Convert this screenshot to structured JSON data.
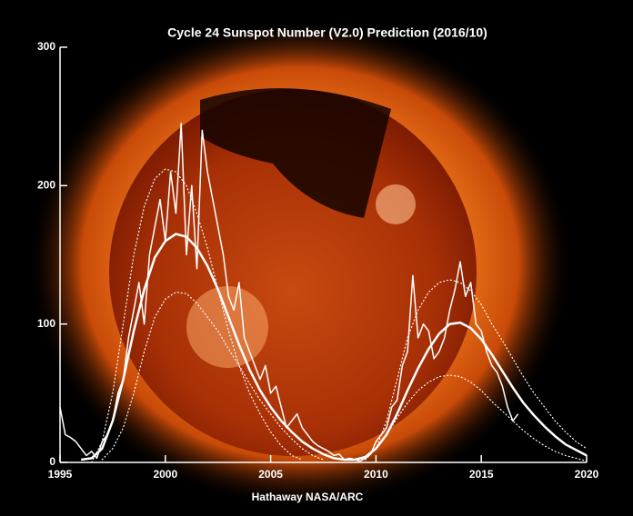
{
  "chart_data": {
    "type": "line",
    "title": "Cycle 24 Sunspot Number (V2.0) Prediction (2016/10)",
    "footer": "Hathaway  NASA/ARC",
    "xlim": [
      1995,
      2020
    ],
    "ylim": [
      0,
      300
    ],
    "xticks": [
      1995,
      2000,
      2005,
      2010,
      2015,
      2020
    ],
    "yticks": [
      0,
      100,
      200,
      300
    ],
    "series": [
      {
        "color": "#ffffff",
        "style": "solid",
        "width": 1.5,
        "x": [
          1995,
          1995.25,
          1995.5,
          1995.75,
          1996,
          1996.25,
          1996.5,
          1996.75,
          1997,
          1997.25,
          1997.5,
          1997.75,
          1998,
          1998.25,
          1998.5,
          1998.75,
          1999,
          1999.25,
          1999.5,
          1999.75,
          2000,
          2000.25,
          2000.5,
          2000.75,
          2001,
          2001.25,
          2001.5,
          2001.75,
          2002,
          2002.25,
          2002.5,
          2002.75,
          2003,
          2003.25,
          2003.5,
          2003.75,
          2004,
          2004.25,
          2004.5,
          2004.75,
          2005,
          2005.25,
          2005.5,
          2005.75,
          2006,
          2006.25,
          2006.5,
          2006.75,
          2007,
          2007.25,
          2007.5,
          2007.75,
          2008,
          2008.25,
          2008.5,
          2008.75,
          2009,
          2009.25,
          2009.5,
          2009.75,
          2010,
          2010.25,
          2010.5,
          2010.75,
          2011,
          2011.25,
          2011.5,
          2011.75,
          2012,
          2012.25,
          2012.5,
          2012.75,
          2013,
          2013.25,
          2013.5,
          2013.75,
          2014,
          2014.25,
          2014.5,
          2014.75,
          2015,
          2015.25,
          2015.5,
          2015.75,
          2016,
          2016.25,
          2016.5,
          2016.75
        ],
        "values": [
          40,
          20,
          18,
          15,
          10,
          5,
          8,
          3,
          15,
          20,
          30,
          50,
          60,
          90,
          110,
          130,
          100,
          150,
          170,
          190,
          160,
          210,
          180,
          245,
          150,
          200,
          140,
          240,
          210,
          190,
          170,
          150,
          120,
          110,
          130,
          90,
          80,
          70,
          60,
          70,
          50,
          55,
          40,
          25,
          30,
          35,
          25,
          20,
          15,
          12,
          10,
          8,
          5,
          6,
          2,
          3,
          2,
          1,
          3,
          6,
          15,
          20,
          25,
          40,
          45,
          70,
          80,
          135,
          90,
          100,
          95,
          75,
          80,
          90,
          110,
          125,
          145,
          120,
          130,
          100,
          95,
          80,
          70,
          65,
          55,
          40,
          30,
          35
        ]
      },
      {
        "color": "#ffffff",
        "style": "solid",
        "width": 2.5,
        "x": [
          1996,
          1996.5,
          1997,
          1997.5,
          1998,
          1998.5,
          1999,
          1999.5,
          2000,
          2000.5,
          2001,
          2001.5,
          2002,
          2002.5,
          2003,
          2003.5,
          2004,
          2004.5,
          2005,
          2005.5,
          2006,
          2006.5,
          2007,
          2007.5,
          2008,
          2008.5,
          2009,
          2009.5,
          2010,
          2010.5,
          2011,
          2011.5,
          2012,
          2012.5,
          2013,
          2013.5,
          2014,
          2014.5,
          2015,
          2015.5,
          2016,
          2016.5,
          2017,
          2017.5,
          2018,
          2018.5,
          2019,
          2019.5,
          2020
        ],
        "values": [
          2,
          3,
          10,
          30,
          60,
          95,
          125,
          148,
          160,
          165,
          163,
          155,
          142,
          125,
          105,
          85,
          67,
          52,
          40,
          30,
          22,
          15,
          10,
          6,
          3,
          2,
          2,
          4,
          10,
          20,
          35,
          52,
          68,
          82,
          93,
          100,
          101,
          97,
          89,
          78,
          66,
          54,
          43,
          34,
          26,
          19,
          13,
          9,
          5
        ]
      },
      {
        "color": "#ffffff",
        "style": "dotted",
        "width": 1.2,
        "x": [
          1996,
          1996.5,
          1997,
          1997.5,
          1998,
          1998.5,
          1999,
          1999.5,
          2000,
          2000.5,
          2001,
          2001.5,
          2002,
          2002.5,
          2003,
          2003.5,
          2004,
          2004.5,
          2005,
          2005.5,
          2006,
          2006.5,
          2007,
          2007.5,
          2008,
          2008.5,
          2009,
          2009.5,
          2010,
          2010.5,
          2011,
          2011.5,
          2012,
          2012.5,
          2013,
          2013.5,
          2014,
          2014.5,
          2015,
          2015.5,
          2016,
          2016.5,
          2017,
          2017.5,
          2018,
          2018.5,
          2019,
          2019.5,
          2020
        ],
        "values": [
          null,
          0,
          15,
          50,
          100,
          150,
          185,
          205,
          212,
          210,
          200,
          180,
          155,
          125,
          95,
          70,
          50,
          35,
          22,
          12,
          5,
          2,
          null,
          null,
          null,
          null,
          null,
          2,
          10,
          30,
          60,
          90,
          110,
          123,
          130,
          132,
          130,
          124,
          114,
          100,
          88,
          75,
          62,
          50,
          40,
          30,
          22,
          15,
          10
        ]
      },
      {
        "color": "#ffffff",
        "style": "dotted",
        "width": 1.2,
        "x": [
          1996,
          1996.5,
          1997,
          1997.5,
          1998,
          1998.5,
          1999,
          1999.5,
          2000,
          2000.5,
          2001,
          2001.5,
          2002,
          2002.5,
          2003,
          2003.5,
          2004,
          2004.5,
          2005,
          2005.5,
          2006,
          2006.5,
          2007,
          2007.5,
          2008,
          2008.5,
          2009,
          2009.5,
          2010,
          2010.5,
          2011,
          2011.5,
          2012,
          2012.5,
          2013,
          2013.5,
          2014,
          2014.5,
          2015,
          2015.5,
          2016,
          2016.5,
          2017,
          2017.5,
          2018,
          2018.5,
          2019,
          2019.5,
          2020
        ],
        "values": [
          null,
          null,
          2,
          10,
          25,
          50,
          80,
          105,
          118,
          123,
          122,
          115,
          105,
          95,
          82,
          70,
          57,
          45,
          35,
          25,
          17,
          10,
          5,
          2,
          null,
          null,
          0,
          3,
          10,
          20,
          32,
          43,
          52,
          58,
          62,
          63,
          62,
          58,
          52,
          44,
          37,
          30,
          23,
          17,
          12,
          8,
          5,
          3,
          1
        ]
      }
    ]
  }
}
